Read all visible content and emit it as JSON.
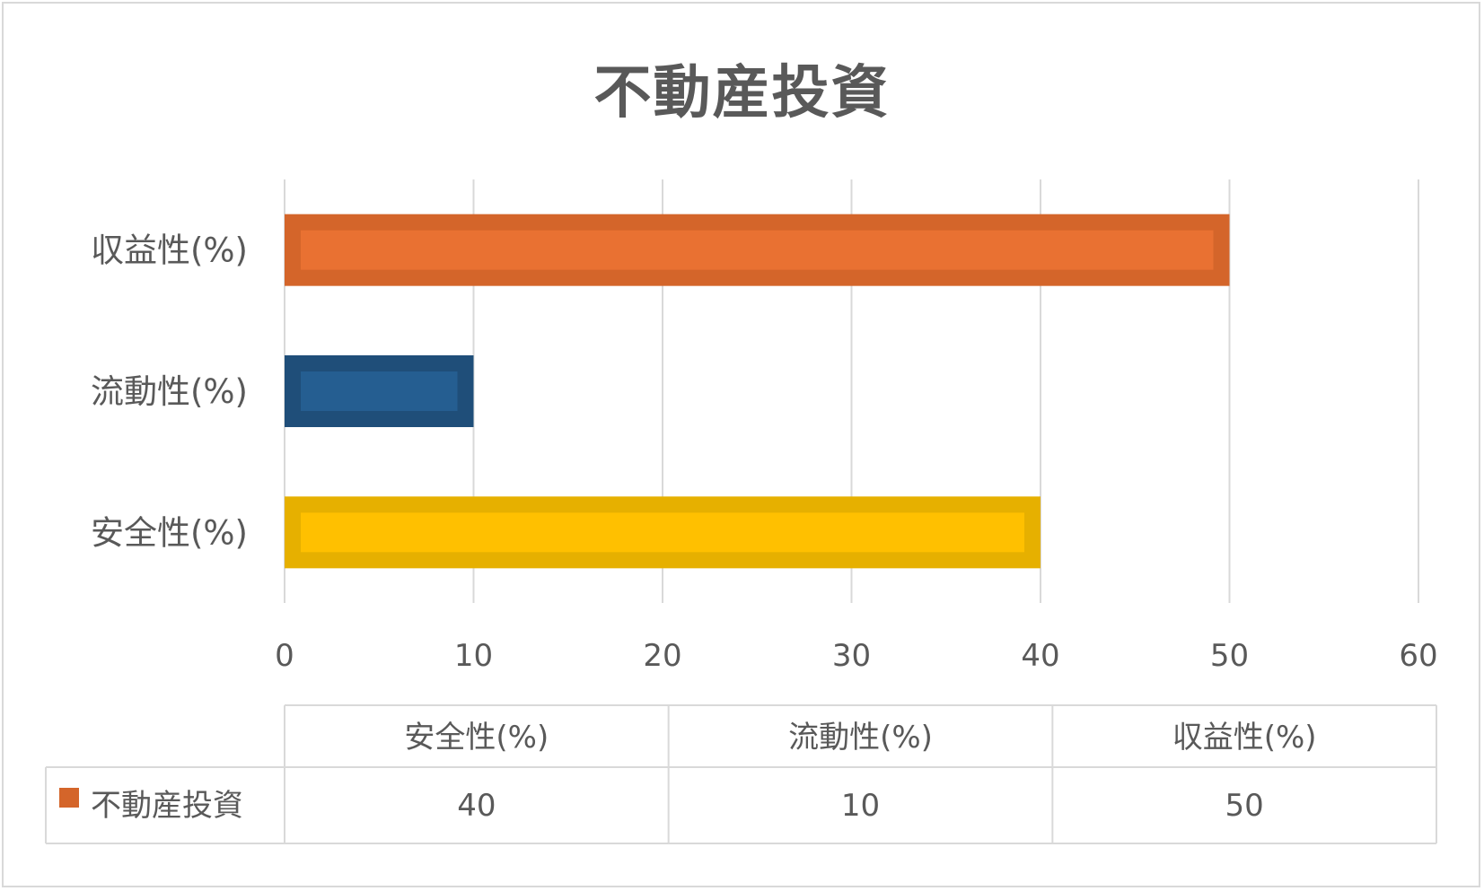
{
  "chart_data": {
    "type": "bar",
    "orientation": "horizontal",
    "title": "不動産投資",
    "categories": [
      "安全性(%)",
      "流動性(%)",
      "収益性(%)"
    ],
    "series": [
      {
        "name": "不動産投資",
        "values": [
          40,
          10,
          50
        ]
      }
    ],
    "bar_colors": [
      "#E6B000",
      "#1F4E79",
      "#D4652A"
    ],
    "bar_fill_colors": [
      "#FFC000",
      "#255E91",
      "#E97132"
    ],
    "legend_color": "#D4652A",
    "xlim": [
      0,
      60
    ],
    "x_ticks": [
      "0",
      "10",
      "20",
      "30",
      "40",
      "50",
      "60"
    ],
    "grid": true,
    "data_table": {
      "headers": [
        "安全性(%)",
        "流動性(%)",
        "収益性(%)"
      ],
      "rows": [
        {
          "label": "不動産投資",
          "values": [
            "40",
            "10",
            "50"
          ]
        }
      ]
    }
  }
}
